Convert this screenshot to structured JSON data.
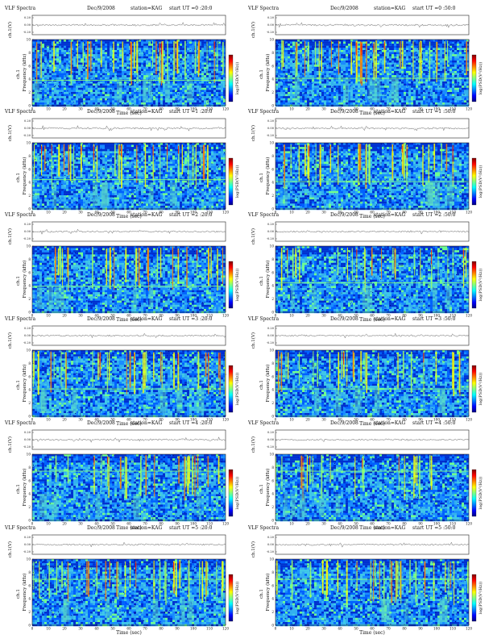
{
  "page": {
    "background": "#ffffff"
  },
  "chart_data": {
    "type": "heatmap",
    "common": {
      "panel_title": "VLF Spectra",
      "date": "Dec/9/2008",
      "station": "station=KAG",
      "start_label": "start UT =",
      "top_ylabel": "ch.1(V)",
      "top_yticks": [
        "0.20",
        "0.00",
        "-0.20"
      ],
      "xlabel": "Time  (sec)",
      "xticks": [
        0,
        10,
        20,
        30,
        40,
        50,
        60,
        70,
        80,
        90,
        100,
        110,
        120
      ],
      "xlim": [
        0,
        120
      ],
      "ylabel": "Frequency  (kHz)",
      "yticks": [
        0,
        2,
        4,
        6,
        8,
        10
      ],
      "ylim": [
        0,
        10
      ],
      "colorbar_label": "log(PSD(V²/Hz))",
      "colormap": [
        "#00007f",
        "#0000ff",
        "#0080ff",
        "#00ffff",
        "#80ff80",
        "#ffff00",
        "#ff8000",
        "#ff0000",
        "#7f0000"
      ],
      "background_color": "#2aa6e6",
      "grid": false
    },
    "panels": [
      {
        "start": "0 :20:0",
        "hline_khz": 3.9,
        "seed": 11,
        "density": 0.9
      },
      {
        "start": "0 :50:0",
        "hline_khz": 4.2,
        "seed": 23,
        "density": 0.9
      },
      {
        "start": "1 :20:0",
        "hline_khz": 4.5,
        "seed": 37,
        "density": 0.8
      },
      {
        "start": "1 :50:0",
        "hline_khz": 4.2,
        "seed": 41,
        "density": 0.8
      },
      {
        "start": "2 :20:0",
        "hline_khz": 4.0,
        "seed": 53,
        "density": 0.8
      },
      {
        "start": "2 :50:0",
        "hline_khz": 4.5,
        "seed": 67,
        "density": 0.6
      },
      {
        "start": "3 :20:0",
        "hline_khz": 4.2,
        "seed": 71,
        "density": 0.8
      },
      {
        "start": "3 :50:0",
        "hline_khz": 4.2,
        "seed": 83,
        "density": 0.7
      },
      {
        "start": "4 :20:0",
        "hline_khz": 7.5,
        "seed": 97,
        "density": 0.6
      },
      {
        "start": "4 :50:0",
        "hline_khz": 7.5,
        "seed": 101,
        "density": 0.5
      },
      {
        "start": "5 :20:0",
        "hline_khz": 7.0,
        "seed": 113,
        "density": 0.9
      },
      {
        "start": "5 :50:0",
        "hline_khz": 7.0,
        "seed": 127,
        "density": 0.9
      }
    ]
  }
}
